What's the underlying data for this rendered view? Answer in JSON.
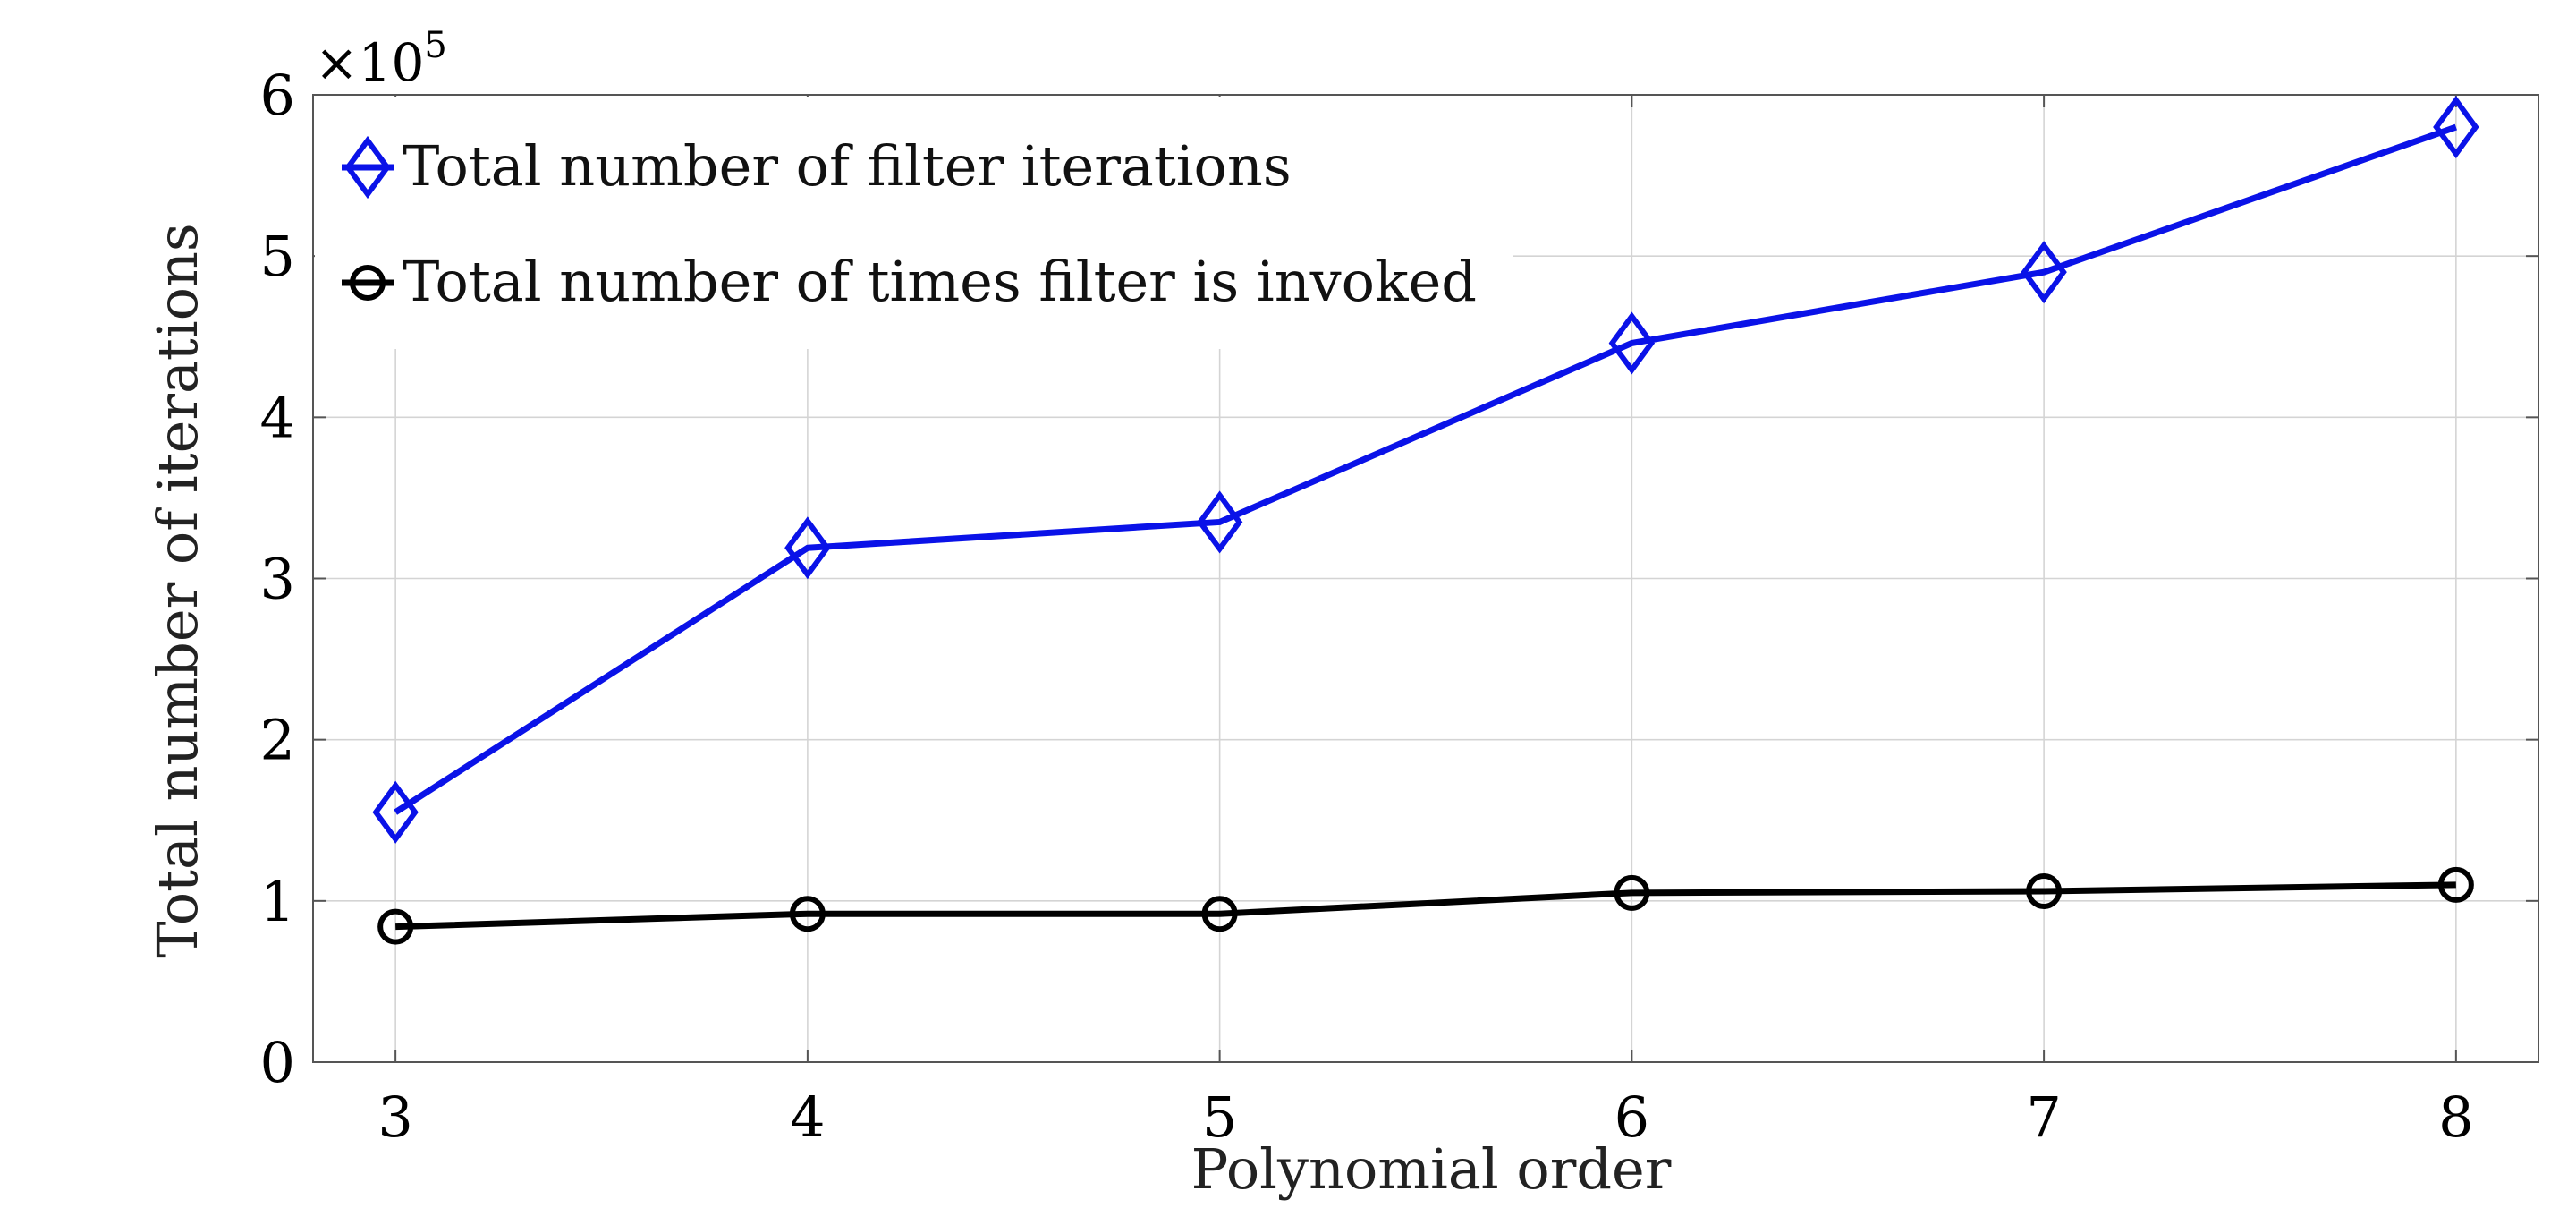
{
  "chart_data": {
    "type": "line",
    "x": [
      3,
      4,
      5,
      6,
      7,
      8
    ],
    "xlabel": "Polynomial order",
    "ylabel": "Total number of iterations",
    "xlim": [
      2.8,
      8.2
    ],
    "ylim": [
      0,
      600000
    ],
    "xticks": [
      3,
      4,
      5,
      6,
      7,
      8
    ],
    "xtick_labels": [
      "3",
      "4",
      "5",
      "6",
      "7",
      "8"
    ],
    "yticks": [
      0,
      100000,
      200000,
      300000,
      400000,
      500000,
      600000
    ],
    "ytick_labels": [
      "0",
      "1",
      "2",
      "3",
      "4",
      "5",
      "6"
    ],
    "y_exponent": {
      "base": "×10",
      "power": "5"
    },
    "grid": true,
    "legend_position": "top-left",
    "series": [
      {
        "name": "Total number of filter iterations",
        "values": [
          155000,
          319000,
          335000,
          446000,
          490000,
          580000
        ],
        "color": "#0a12e8",
        "marker": "diamond"
      },
      {
        "name": "Total number of times filter is invoked",
        "values": [
          84000,
          92000,
          92000,
          105000,
          106000,
          110000
        ],
        "color": "#000000",
        "marker": "circle"
      }
    ]
  }
}
